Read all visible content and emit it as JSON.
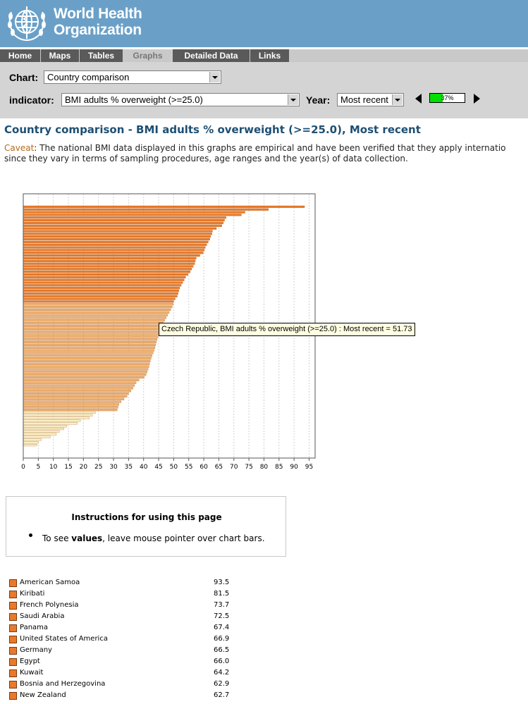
{
  "header": {
    "logo_line1": "World Health",
    "logo_line2": "Organization"
  },
  "nav": {
    "tabs": [
      {
        "label": "Home",
        "active": false
      },
      {
        "label": "Maps",
        "active": false
      },
      {
        "label": "Tables",
        "active": false
      },
      {
        "label": "Graphs",
        "active": true
      },
      {
        "label": "Detailed Data",
        "active": false
      },
      {
        "label": "Links",
        "active": false
      }
    ]
  },
  "controls": {
    "chart_label": "Chart:",
    "chart_value": "Country comparison",
    "indicator_label": "indicator:",
    "indicator_value": "BMI adults % overweight (>=25.0)",
    "year_label": "Year:",
    "year_value": "Most recent",
    "progress_text": "37%",
    "progress_fraction": 0.37
  },
  "page": {
    "title": "Country comparison - BMI adults % overweight (>=25.0), Most recent",
    "caveat_label": "Caveat",
    "caveat_line1": ": The national BMI data displayed in this graphs are empirical and have been verified that they apply internatio",
    "caveat_line2": "since they vary in terms of sampling procedures, age ranges and the year(s) of data collection."
  },
  "tooltip": "Czech Republic, BMI adults % overweight (>=25.0) : Most recent = 51.73",
  "instructions": {
    "title": "Instructions for using this page",
    "text_before": "To see ",
    "text_bold": "values",
    "text_after": ", leave mouse pointer over chart bars."
  },
  "legend": [
    {
      "name": "American Samoa",
      "value": "93.5"
    },
    {
      "name": "Kiribati",
      "value": "81.5"
    },
    {
      "name": "French Polynesia",
      "value": "73.7"
    },
    {
      "name": "Saudi Arabia",
      "value": "72.5"
    },
    {
      "name": "Panama",
      "value": "67.4"
    },
    {
      "name": "United States of America",
      "value": "66.9"
    },
    {
      "name": "Germany",
      "value": "66.5"
    },
    {
      "name": "Egypt",
      "value": "66.0"
    },
    {
      "name": "Kuwait",
      "value": "64.2"
    },
    {
      "name": "Bosnia and Herzegovina",
      "value": "62.9"
    },
    {
      "name": "New Zealand",
      "value": "62.7"
    }
  ],
  "chart_data": {
    "type": "bar",
    "orientation": "horizontal",
    "xlim": [
      0,
      97
    ],
    "xticks": [
      0,
      5,
      10,
      15,
      20,
      25,
      30,
      35,
      40,
      45,
      50,
      55,
      60,
      65,
      70,
      75,
      80,
      85,
      90,
      95
    ],
    "grid": true,
    "colors": {
      "high": "#e87a2a",
      "mid": "#eeb070",
      "low": "#faf0c4"
    },
    "values": [
      93.5,
      81.5,
      73.7,
      72.5,
      67.4,
      66.9,
      66.5,
      66.0,
      64.2,
      62.9,
      62.7,
      62.3,
      62.0,
      61.5,
      61.0,
      60.5,
      60.2,
      59.8,
      58.7,
      57.5,
      57.2,
      57.0,
      56.5,
      56.0,
      55.5,
      54.8,
      54.0,
      53.5,
      53.0,
      52.5,
      52.0,
      51.73,
      51.5,
      51.2,
      50.5,
      50.0,
      49.8,
      49.5,
      49.0,
      48.5,
      48.0,
      47.5,
      47.0,
      46.5,
      46.0,
      45.5,
      45.2,
      45.0,
      44.8,
      44.5,
      44.2,
      44.0,
      43.8,
      43.5,
      43.2,
      42.8,
      42.5,
      42.2,
      42.0,
      41.8,
      41.5,
      41.2,
      40.8,
      40.2,
      38.5,
      37.5,
      37.0,
      36.5,
      35.8,
      35.0,
      34.5,
      33.5,
      32.5,
      31.8,
      31.5,
      31.2,
      24.0,
      23.0,
      22.0,
      19.0,
      18.0,
      14.5,
      13.5,
      12.0,
      11.0,
      9.0,
      6.0,
      5.0,
      4.5
    ]
  }
}
